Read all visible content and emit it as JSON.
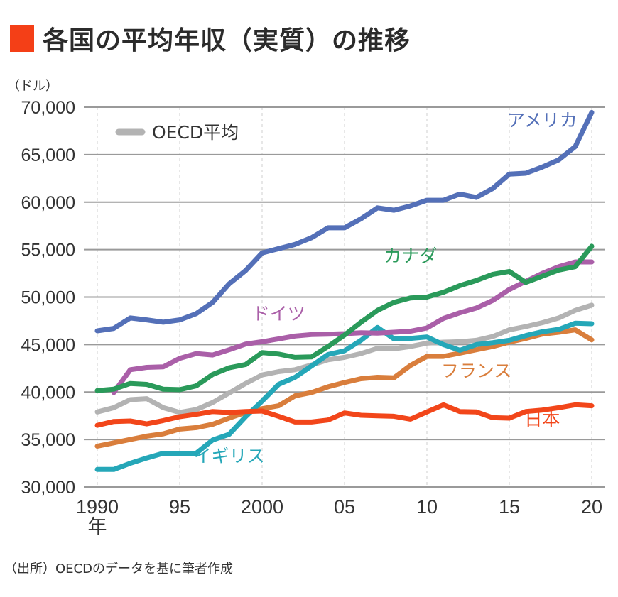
{
  "title": "各国の平均年収（実質）の推移",
  "title_mark_color": "#f43f17",
  "unit_label": "（ドル）",
  "source": "（出所）OECDのデータを基に筆者作成",
  "chart_data": {
    "type": "line",
    "title": "各国の平均年収（実質）の推移",
    "xlabel": "年",
    "ylabel": "（ドル）",
    "ylim": [
      30000,
      70000
    ],
    "xlim": [
      1990,
      2020
    ],
    "yticks": [
      30000,
      35000,
      40000,
      45000,
      50000,
      55000,
      60000,
      65000,
      70000
    ],
    "ytick_labels": [
      "30,000",
      "35,000",
      "40,000",
      "45,000",
      "50,000",
      "55,000",
      "60,000",
      "65,000",
      "70,000"
    ],
    "xticks": [
      1990,
      1995,
      2000,
      2005,
      2010,
      2015,
      2020
    ],
    "xtick_labels": [
      "1990",
      "95",
      "2000",
      "05",
      "10",
      "15",
      "20"
    ],
    "xtick_sublabel": "年",
    "grid": "horizontal solid, vertical dashed",
    "legend": {
      "label": "OECD平均",
      "position": "top-left",
      "color": "#b3b3b3"
    },
    "x": [
      1990,
      1991,
      1992,
      1993,
      1994,
      1995,
      1996,
      1997,
      1998,
      1999,
      2000,
      2001,
      2002,
      2003,
      2004,
      2005,
      2006,
      2007,
      2008,
      2009,
      2010,
      2011,
      2012,
      2013,
      2014,
      2015,
      2016,
      2017,
      2018,
      2019,
      2020
    ],
    "series": [
      {
        "name": "アメリカ",
        "color": "#5470b8",
        "values": [
          46450,
          46700,
          47800,
          47600,
          47350,
          47600,
          48250,
          49450,
          51400,
          52800,
          54650,
          55100,
          55550,
          56250,
          57300,
          57300,
          58250,
          59400,
          59150,
          59600,
          60200,
          60200,
          60850,
          60500,
          61450,
          62950,
          63050,
          63700,
          64450,
          65850,
          69450
        ]
      },
      {
        "name": "カナダ",
        "color": "#2a9a5a",
        "values": [
          40150,
          40300,
          40900,
          40800,
          40300,
          40250,
          40650,
          41850,
          42550,
          42900,
          44150,
          44000,
          43650,
          43700,
          44800,
          46000,
          47350,
          48600,
          49450,
          49900,
          50000,
          50500,
          51200,
          51750,
          52400,
          52700,
          51550,
          52200,
          52850,
          53200,
          55350
        ]
      },
      {
        "name": "ドイツ",
        "color": "#aa5fa8",
        "values": [
          null,
          39950,
          42350,
          42600,
          42650,
          43550,
          44050,
          43900,
          44450,
          45050,
          45300,
          45600,
          45900,
          46050,
          46100,
          46150,
          46250,
          46200,
          46300,
          46400,
          46750,
          47750,
          48350,
          48850,
          49650,
          50800,
          51650,
          52500,
          53200,
          53700,
          53700
        ]
      },
      {
        "name": "OECD平均",
        "color": "#b3b3b3",
        "values": [
          37900,
          38350,
          39200,
          39300,
          38350,
          37850,
          38150,
          38900,
          39900,
          40900,
          41800,
          42150,
          42350,
          42850,
          43400,
          43650,
          44050,
          44600,
          44550,
          44800,
          45150,
          45250,
          45300,
          45450,
          45850,
          46550,
          46900,
          47300,
          47800,
          48600,
          49150
        ]
      },
      {
        "name": "イギリス",
        "color": "#25a7b8",
        "values": [
          31850,
          31850,
          32500,
          33050,
          33550,
          33550,
          33550,
          34950,
          35550,
          37400,
          39050,
          40800,
          41550,
          42750,
          43950,
          44350,
          45450,
          46800,
          45600,
          45650,
          45800,
          45000,
          44400,
          45000,
          45200,
          45450,
          45950,
          46350,
          46600,
          47250,
          47200
        ]
      },
      {
        "name": "フランス",
        "color": "#d97e3c",
        "values": [
          34300,
          34650,
          35000,
          35350,
          35600,
          36100,
          36250,
          36600,
          37250,
          37850,
          38250,
          38550,
          39600,
          39950,
          40550,
          41000,
          41400,
          41550,
          41500,
          42800,
          43750,
          43750,
          44100,
          44450,
          44800,
          45250,
          45650,
          46100,
          46300,
          46550,
          45500
        ]
      },
      {
        "name": "日本",
        "color": "#f2461a",
        "values": [
          36500,
          36900,
          36950,
          36650,
          37000,
          37400,
          37650,
          37950,
          37850,
          37950,
          38000,
          37450,
          36850,
          36850,
          37050,
          37800,
          37550,
          37500,
          37450,
          37150,
          37900,
          38650,
          37950,
          37900,
          37300,
          37250,
          37950,
          38100,
          38350,
          38650,
          38550
        ]
      }
    ],
    "annotations": [
      {
        "text": "アメリカ",
        "series": "アメリカ",
        "near_x": 2017,
        "near_y": 68000
      },
      {
        "text": "カナダ",
        "series": "カナダ",
        "near_x": 2009,
        "near_y": 53700
      },
      {
        "text": "ドイツ",
        "series": "ドイツ",
        "near_x": 2001,
        "near_y": 47600
      },
      {
        "text": "フランス",
        "series": "フランス",
        "near_x": 2013,
        "near_y": 41600
      },
      {
        "text": "日本",
        "series": "日本",
        "near_x": 2017,
        "near_y": 36500
      },
      {
        "text": "イギリス",
        "series": "イギリス",
        "near_x": 1998,
        "near_y": 32600
      }
    ]
  }
}
